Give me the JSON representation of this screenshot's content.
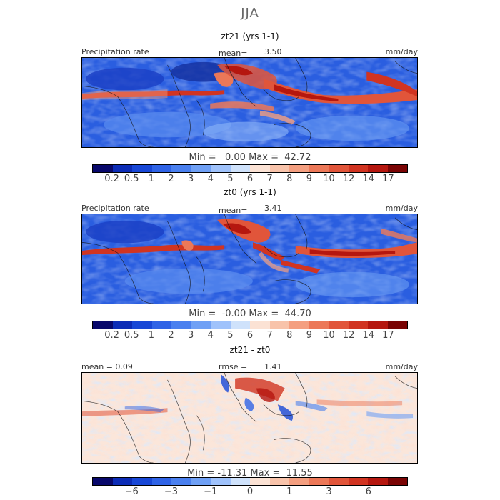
{
  "title": "JJA",
  "units": "mm/day",
  "panel1": {
    "subtitle": "zt21 (yrs 1-1)",
    "field": "Precipitation rate",
    "mean_label": "mean=",
    "mean_value": "3.50",
    "minmax": "Min =   0.00 Max =  42.72"
  },
  "panel2": {
    "subtitle": "zt0 (yrs 1-1)",
    "field": "Precipitation rate",
    "mean_label": "mean=",
    "mean_value": "3.41",
    "minmax": "Min =  -0.00 Max =  44.70"
  },
  "panel3": {
    "subtitle": "zt21 - zt0",
    "mean_text": "mean =  0.09",
    "rmse_label": "rmse =",
    "rmse_value": "1.41",
    "minmax": "Min = -11.31 Max =  11.55"
  },
  "colorbar_abs": {
    "colors": [
      "#08086b",
      "#0c2cb6",
      "#1847d6",
      "#2f63e6",
      "#4a80ef",
      "#6fa0f5",
      "#9fc2fb",
      "#cfe2fb",
      "#fbe2d4",
      "#f8c3aa",
      "#f49f80",
      "#ec7858",
      "#e1553a",
      "#d13421",
      "#b5170f",
      "#7a0404"
    ],
    "ticks": [
      "0.2",
      "0.5",
      "1",
      "2",
      "3",
      "4",
      "5",
      "6",
      "7",
      "8",
      "9",
      "10",
      "12",
      "14",
      "17"
    ]
  },
  "colorbar_diff": {
    "colors": [
      "#08086b",
      "#0c2cb6",
      "#1847d6",
      "#2f63e6",
      "#4a80ef",
      "#6fa0f5",
      "#9fc2fb",
      "#cfe2fb",
      "#fbe2d4",
      "#f8c3aa",
      "#f49f80",
      "#ec7858",
      "#e1553a",
      "#d13421",
      "#b5170f",
      "#7a0404"
    ],
    "ticks": [
      {
        "label": "−6",
        "pos": 2
      },
      {
        "label": "−3",
        "pos": 4
      },
      {
        "label": "−1",
        "pos": 6
      },
      {
        "label": "0",
        "pos": 8
      },
      {
        "label": "1",
        "pos": 10
      },
      {
        "label": "3",
        "pos": 12
      },
      {
        "label": "6",
        "pos": 14
      }
    ]
  }
}
